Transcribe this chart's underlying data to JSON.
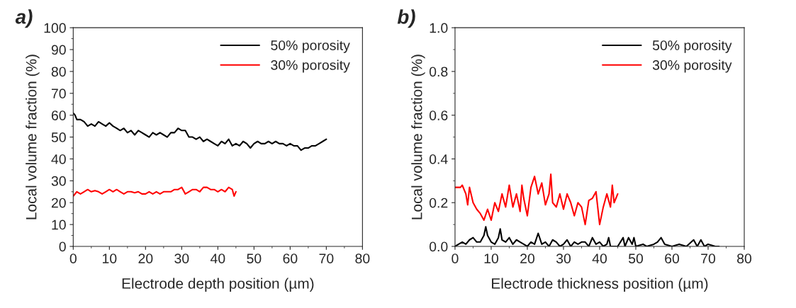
{
  "chart_data": [
    {
      "type": "line",
      "title": "a)",
      "xlabel": "Electrode depth position (µm)",
      "ylabel": "Local volume fraction (%)",
      "xlim": [
        0,
        80
      ],
      "xticks": [
        0,
        10,
        20,
        30,
        40,
        50,
        60,
        70,
        80
      ],
      "ylim": [
        0,
        100
      ],
      "yticks": [
        0,
        10,
        20,
        30,
        40,
        50,
        60,
        70,
        80,
        90,
        100
      ],
      "grid": false,
      "legend": "top right",
      "line_style": "solid",
      "marker": "none",
      "series": [
        {
          "name": "50% porosity",
          "color": "#000000",
          "x": [
            0,
            0.5,
            1,
            2,
            3,
            4,
            5,
            6,
            7,
            8,
            9,
            10,
            11,
            12,
            13,
            14,
            15,
            16,
            17,
            18,
            19,
            20,
            21,
            22,
            23,
            24,
            25,
            26,
            27,
            28,
            29,
            30,
            31,
            32,
            33,
            34,
            35,
            36,
            37,
            38,
            39,
            40,
            41,
            42,
            43,
            44,
            45,
            46,
            47,
            48,
            49,
            50,
            51,
            52,
            53,
            54,
            55,
            56,
            57,
            58,
            59,
            60,
            61,
            62,
            63,
            64,
            65,
            66,
            67,
            68,
            69,
            70
          ],
          "values": [
            61,
            60,
            58,
            58,
            57,
            55,
            56,
            55,
            57,
            56,
            55,
            56.5,
            55,
            54,
            53,
            54,
            52,
            53,
            51,
            53,
            52,
            51,
            50,
            52,
            51,
            52,
            51,
            50,
            52,
            52,
            54,
            53,
            53,
            50,
            50,
            49,
            50,
            48,
            49,
            48,
            47,
            46,
            48,
            47,
            49,
            46,
            47,
            46,
            48,
            47,
            45,
            47,
            48,
            47,
            47,
            48,
            47,
            48,
            47,
            47,
            46,
            47,
            46,
            46,
            44,
            45,
            45,
            46,
            46,
            47,
            48,
            49
          ]
        },
        {
          "name": "30% porosity",
          "color": "#ff0000",
          "x": [
            0,
            1,
            2,
            3,
            4,
            5,
            6,
            7,
            8,
            9,
            10,
            11,
            12,
            13,
            14,
            15,
            16,
            17,
            18,
            19,
            20,
            21,
            22,
            23,
            24,
            25,
            26,
            27,
            28,
            29,
            30,
            31,
            32,
            33,
            34,
            35,
            36,
            37,
            38,
            39,
            40,
            41,
            42,
            43,
            44,
            44.5,
            45
          ],
          "values": [
            23,
            25,
            24,
            25,
            26,
            25,
            25.5,
            25,
            24,
            25,
            26,
            25,
            26,
            25,
            24,
            25,
            25,
            24.5,
            25,
            24,
            24,
            25,
            24,
            25,
            24,
            25,
            25,
            25,
            26,
            26,
            27,
            24,
            25,
            26,
            26,
            25,
            27,
            27,
            26,
            26,
            25,
            26,
            25,
            27,
            26,
            23,
            25
          ]
        }
      ]
    },
    {
      "type": "line",
      "title": "b)",
      "xlabel": "Electrode thickness position (µm)",
      "ylabel": "Local volume fraction (%)",
      "xlim": [
        0,
        80
      ],
      "xticks": [
        0,
        10,
        20,
        30,
        40,
        50,
        60,
        70,
        80
      ],
      "ylim": [
        0,
        1.0
      ],
      "yticks": [
        {
          "value": 0,
          "label": "0.0"
        },
        0.2,
        0.4,
        0.6,
        0.8,
        {
          "value": 1,
          "label": "1.0"
        }
      ],
      "grid": false,
      "legend": "top right",
      "line_style": "solid",
      "marker": "none",
      "series": [
        {
          "name": "50% porosity",
          "color": "#000000",
          "x": [
            0,
            1,
            2,
            3,
            4,
            5,
            6,
            7,
            8,
            8.5,
            9,
            10,
            11,
            12,
            12.5,
            13,
            14,
            15,
            16,
            17,
            18,
            19,
            20,
            21,
            22,
            23,
            24,
            25,
            26,
            27,
            28,
            29,
            30,
            31,
            32,
            33,
            34,
            35,
            36,
            37,
            38,
            39,
            40,
            41,
            42,
            42.5,
            43,
            45,
            46.5,
            47,
            48,
            49,
            49.5,
            50,
            52,
            53,
            55,
            56,
            57,
            58,
            60,
            62,
            64,
            66,
            67,
            68,
            69,
            70,
            72,
            73
          ],
          "values": [
            0,
            0.01,
            0.02,
            0.01,
            0.03,
            0.04,
            0.02,
            0.02,
            0.05,
            0.09,
            0.05,
            0.02,
            0.01,
            0.04,
            0.08,
            0.03,
            0.02,
            0.04,
            0.01,
            0.03,
            0.02,
            0.01,
            0,
            0.02,
            0.01,
            0.06,
            0.01,
            0.02,
            0,
            0.03,
            0.02,
            0,
            0.01,
            0.03,
            0,
            0.02,
            0.01,
            0.02,
            0.02,
            0,
            0.04,
            0.01,
            0.02,
            0,
            0.01,
            0.04,
            0,
            0,
            0.04,
            0,
            0.04,
            0.01,
            0.04,
            0,
            0.01,
            0,
            0.01,
            0.02,
            0.04,
            0.01,
            0,
            0.01,
            0,
            0.03,
            0,
            0.03,
            0,
            0.01,
            0,
            0
          ]
        },
        {
          "name": "30% porosity",
          "color": "#ff0000",
          "x": [
            0,
            1.5,
            2,
            3,
            3.5,
            4,
            5,
            6,
            7,
            8,
            9,
            10,
            11,
            12,
            13,
            14,
            15,
            16,
            17,
            18,
            18.5,
            19,
            20,
            21,
            22,
            23,
            24,
            25,
            26,
            26.5,
            27,
            28,
            29,
            30,
            31,
            32,
            33,
            34,
            35,
            36,
            37,
            38,
            39,
            40,
            41,
            42,
            43,
            43.5,
            44,
            45
          ],
          "values": [
            0.27,
            0.27,
            0.28,
            0.24,
            0.19,
            0.27,
            0.2,
            0.17,
            0.15,
            0.12,
            0.17,
            0.12,
            0.2,
            0.16,
            0.24,
            0.18,
            0.28,
            0.18,
            0.24,
            0.16,
            0.28,
            0.22,
            0.14,
            0.27,
            0.32,
            0.24,
            0.29,
            0.19,
            0.24,
            0.33,
            0.2,
            0.18,
            0.24,
            0.17,
            0.24,
            0.2,
            0.14,
            0.2,
            0.18,
            0.1,
            0.21,
            0.22,
            0.25,
            0.1,
            0.18,
            0.24,
            0.18,
            0.28,
            0.2,
            0.24
          ]
        }
      ]
    }
  ]
}
